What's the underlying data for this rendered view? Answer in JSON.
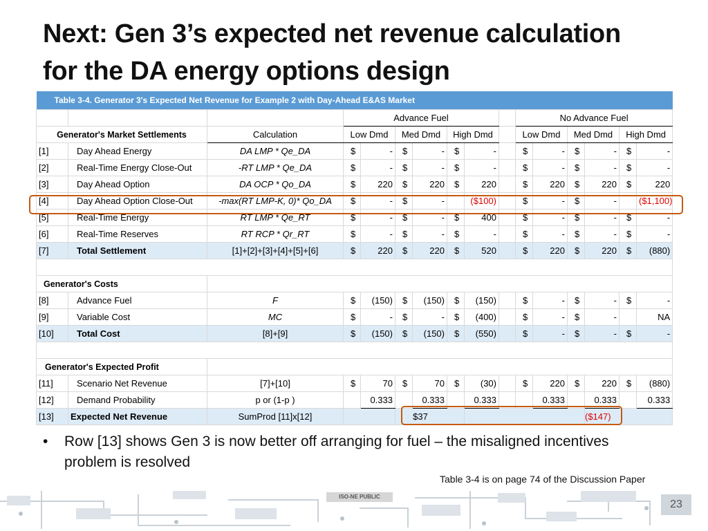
{
  "slide": {
    "title_line1": "Next: Gen 3’s expected net revenue calculation",
    "title_line2": "for the DA energy options design",
    "bullet_text": "Row [13] shows Gen 3 is now better off arranging for fuel –  the misaligned incentives problem is resolved",
    "note": "Table 3-4 is on page 74 of the Discussion Paper",
    "public_label": "ISO-NE PUBLIC",
    "page_number": "23"
  },
  "table": {
    "caption": "Table 3-4.  Generator 3's Expected Net Revenue for Example 2 with Day-Ahead E&AS Market",
    "group_advance": "Advance Fuel",
    "group_no_advance": "No Advance Fuel",
    "section_settlements": "Generator's Market Settlements",
    "calc_header": "Calculation",
    "scenarios": [
      "Low Dmd",
      "Med Dmd",
      "High Dmd",
      "Low Dmd",
      "Med Dmd",
      "High Dmd"
    ],
    "section_costs": "Generator's Costs",
    "section_profit": "Generator's Expected Profit",
    "rows": [
      {
        "id": "[1]",
        "label": "Day Ahead Energy",
        "calc": "DA LMP * Qe_DA",
        "italic": true,
        "values": [
          "$",
          "-",
          "$",
          "-",
          "$",
          "-",
          "$",
          "-",
          "$",
          "-",
          "$",
          "-"
        ]
      },
      {
        "id": "[2]",
        "label": "Real-Time Energy Close-Out",
        "calc": "-RT LMP * Qe_DA",
        "italic": true,
        "values": [
          "$",
          "-",
          "$",
          "-",
          "$",
          "-",
          "$",
          "-",
          "$",
          "-",
          "$",
          "-"
        ]
      },
      {
        "id": "[3]",
        "label": "Day Ahead Option",
        "calc": "DA OCP * Qo_DA",
        "italic": true,
        "values": [
          "$",
          "220",
          "$",
          "220",
          "$",
          "220",
          "$",
          "220",
          "$",
          "220",
          "$",
          "220"
        ]
      },
      {
        "id": "[4]",
        "label": "Day Ahead Option Close-Out",
        "calc": "-max(RT LMP-K, 0)* Qo_DA",
        "italic": true,
        "values": [
          "$",
          "-",
          "$",
          "-",
          "",
          "($100)",
          "$",
          "-",
          "$",
          "-",
          "",
          "($1,100)"
        ]
      },
      {
        "id": "[5]",
        "label": "Real-Time Energy",
        "calc": "RT LMP * Qe_RT",
        "italic": true,
        "values": [
          "$",
          "-",
          "$",
          "-",
          "$",
          "400",
          "$",
          "-",
          "$",
          "-",
          "$",
          "-"
        ]
      },
      {
        "id": "[6]",
        "label": "Real-Time Reserves",
        "calc": "RT RCP * Qr_RT",
        "italic": true,
        "values": [
          "$",
          "-",
          "$",
          "-",
          "$",
          "-",
          "$",
          "-",
          "$",
          "-",
          "$",
          "-"
        ]
      },
      {
        "id": "[7]",
        "label": "Total Settlement",
        "calc": "[1]+[2]+[3]+[4]+[5]+[6]",
        "italic": false,
        "values": [
          "$",
          "220",
          "$",
          "220",
          "$",
          "520",
          "$",
          "220",
          "$",
          "220",
          "$",
          "(880)"
        ]
      },
      {
        "id": "[8]",
        "label": "Advance Fuel",
        "calc": "F",
        "italic": true,
        "values": [
          "$",
          "(150)",
          "$",
          "(150)",
          "$",
          "(150)",
          "$",
          "-",
          "$",
          "-",
          "$",
          "-"
        ]
      },
      {
        "id": "[9]",
        "label": "Variable Cost",
        "calc": "MC",
        "italic": true,
        "values": [
          "$",
          "-",
          "$",
          "-",
          "$",
          "(400)",
          "$",
          "-",
          "$",
          "-",
          "",
          "NA"
        ]
      },
      {
        "id": "[10]",
        "label": "Total Cost",
        "calc": "[8]+[9]",
        "italic": false,
        "values": [
          "$",
          "(150)",
          "$",
          "(150)",
          "$",
          "(550)",
          "$",
          "-",
          "$",
          "-",
          "$",
          "-"
        ]
      },
      {
        "id": "[11]",
        "label": "Scenario Net Revenue",
        "calc": "[7]+[10]",
        "italic": false,
        "values": [
          "$",
          "70",
          "$",
          "70",
          "$",
          "(30)",
          "$",
          "220",
          "$",
          "220",
          "$",
          "(880)"
        ]
      },
      {
        "id": "[12]",
        "label": "Demand Probability",
        "calc": "p  or (1-p )",
        "italic": false,
        "values": [
          "",
          "0.333",
          "",
          "0.333",
          "",
          "0.333",
          "",
          "0.333",
          "",
          "0.333",
          "",
          "0.333"
        ]
      },
      {
        "id": "[13]",
        "label": "Expected Net Revenue",
        "calc": "SumProd [11]x[12]",
        "italic": false,
        "advance_total": "$37",
        "no_advance_total": "($147)"
      }
    ]
  },
  "colors": {
    "caption_bg": "#5b9bd5",
    "highlight_row": "#ddebf7",
    "emphasis_box": "#c55a11",
    "negative_red": "#e00000"
  }
}
